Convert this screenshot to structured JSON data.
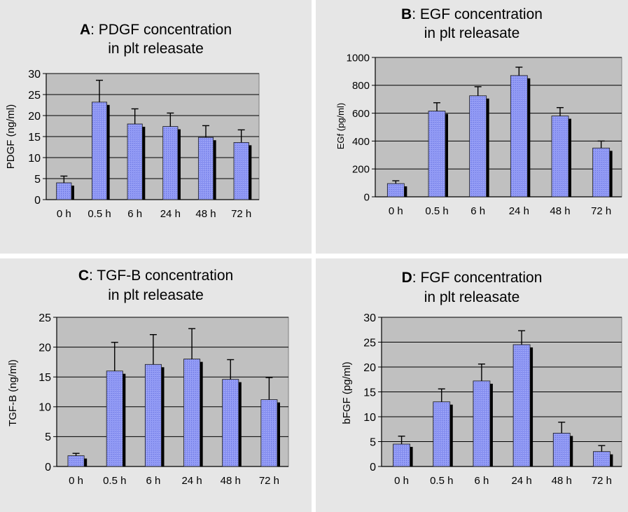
{
  "charts": [
    {
      "id": "a",
      "title_prefix": "A",
      "title_line1": ": PDGF concentration",
      "title_line2": "in plt releasate",
      "chart_data": {
        "type": "bar",
        "ylabel": "PDGF (ng/ml)",
        "ylim": [
          0,
          30
        ],
        "yticks": [
          0,
          5,
          10,
          15,
          20,
          25,
          30
        ],
        "categories": [
          "0 h",
          "0.5 h",
          "6 h",
          "24 h",
          "48 h",
          "72 h"
        ],
        "values": [
          4.0,
          23.2,
          18.0,
          17.4,
          14.8,
          13.6
        ],
        "errors": [
          1.6,
          5.2,
          3.6,
          3.2,
          2.8,
          3.0
        ]
      }
    },
    {
      "id": "b",
      "title_prefix": "B",
      "title_line1": ": EGF concentration",
      "title_line2": "in plt releasate",
      "chart_data": {
        "type": "bar",
        "ylabel": "EGf (pg/ml)",
        "ylim": [
          0,
          1000
        ],
        "yticks": [
          0,
          200,
          400,
          600,
          800,
          1000
        ],
        "categories": [
          "0 h",
          "0.5 h",
          "6 h",
          "24 h",
          "48 h",
          "72 h"
        ],
        "values": [
          95,
          615,
          725,
          870,
          580,
          350
        ],
        "errors": [
          20,
          60,
          65,
          60,
          60,
          50
        ]
      }
    },
    {
      "id": "c",
      "title_prefix": "C",
      "title_line1": ": TGF-B concentration",
      "title_line2": "in plt releasate",
      "chart_data": {
        "type": "bar",
        "ylabel": "TGF-B (ng/ml)",
        "ylim": [
          0,
          25
        ],
        "yticks": [
          0,
          5,
          10,
          15,
          20,
          25
        ],
        "categories": [
          "0 h",
          "0.5 h",
          "6 h",
          "24 h",
          "48 h",
          "72 h"
        ],
        "values": [
          1.8,
          16.0,
          17.1,
          18.0,
          14.6,
          11.2
        ],
        "errors": [
          0.4,
          4.8,
          5.0,
          5.1,
          3.3,
          3.7
        ]
      }
    },
    {
      "id": "d",
      "title_prefix": "D",
      "title_line1": ": FGF concentration",
      "title_line2": "in plt releasate",
      "chart_data": {
        "type": "bar",
        "ylabel": "bFGF (pg/ml)",
        "ylim": [
          0,
          30
        ],
        "yticks": [
          0,
          5,
          10,
          15,
          20,
          25,
          30
        ],
        "categories": [
          "0 h",
          "0.5 h",
          "6 h",
          "24 h",
          "48 h",
          "72 h"
        ],
        "values": [
          4.5,
          13.0,
          17.2,
          24.5,
          6.7,
          3.0
        ],
        "errors": [
          1.6,
          2.6,
          3.4,
          2.8,
          2.2,
          1.2
        ]
      }
    }
  ],
  "colors": {
    "panel_bg": "#e6e6e6",
    "plot_bg": "#c0c0c0",
    "bar_fill": "#8e97f4",
    "bar_shadow": "#000000",
    "gridline": "#808080"
  }
}
